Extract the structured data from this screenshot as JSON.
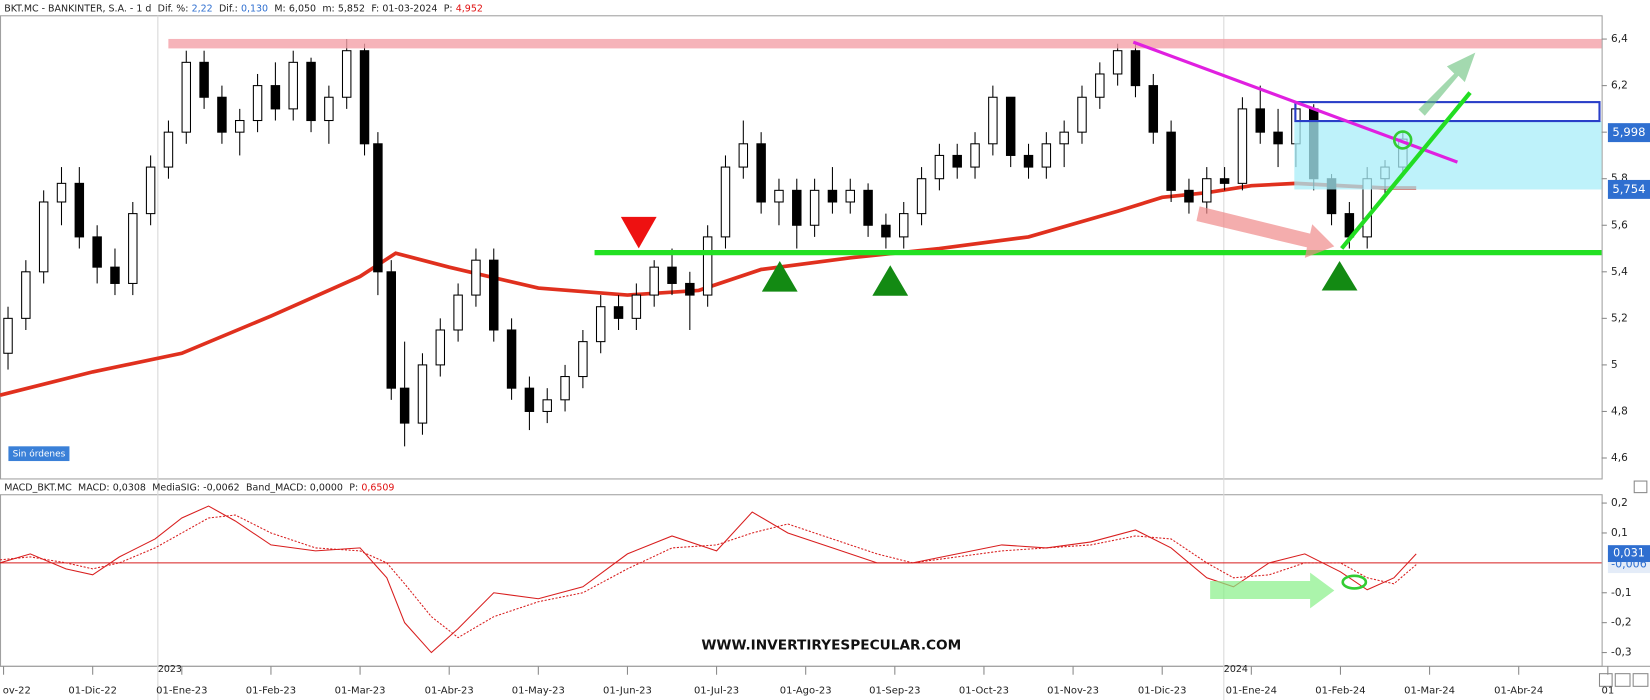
{
  "x_axis": {
    "xlim": [
      -1.04,
      16.93
    ],
    "xticks": [
      {
        "value": -1,
        "label": "ov-22"
      },
      {
        "value": 0,
        "label": "01-Dic-22"
      },
      {
        "value": 1,
        "label": "01-Ene-23"
      },
      {
        "value": 2,
        "label": "01-Feb-23"
      },
      {
        "value": 3,
        "label": "01-Mar-23"
      },
      {
        "value": 4,
        "label": "01-Abr-23"
      },
      {
        "value": 5,
        "label": "01-May-23"
      },
      {
        "value": 6,
        "label": "01-Jun-23"
      },
      {
        "value": 7,
        "label": "01-Jul-23"
      },
      {
        "value": 8,
        "label": "01-Ago-23"
      },
      {
        "value": 9,
        "label": "01-Sep-23"
      },
      {
        "value": 10,
        "label": "01-Oct-23"
      },
      {
        "value": 11,
        "label": "01-Nov-23"
      },
      {
        "value": 12,
        "label": "01-Dic-23"
      },
      {
        "value": 13,
        "label": "01-Ene-24"
      },
      {
        "value": 14,
        "label": "01-Feb-24"
      },
      {
        "value": 15,
        "label": "01-Mar-24"
      },
      {
        "value": 16,
        "label": "01-Abr-24"
      },
      {
        "value": 17,
        "label": "01"
      }
    ],
    "year_labels": [
      "2023",
      "2024"
    ]
  },
  "chart_data": [
    {
      "type": "candlestick",
      "title": "BKT.MC - BANKINTER, S.A. - 1 d",
      "header_fields": [
        {
          "label": "Dif. %:",
          "value": "2,22",
          "color": "#2f6fd0"
        },
        {
          "label": "Dif.:",
          "value": "0,130",
          "color": "#2f6fd0"
        },
        {
          "label": "M:",
          "value": "6,050",
          "color": "#222222"
        },
        {
          "label": "m:",
          "value": "5,852",
          "color": "#222222"
        },
        {
          "label": "F:",
          "value": "01-03-2024",
          "color": "#222222"
        },
        {
          "label": "P:",
          "value": "4,952",
          "color": "#e01010"
        }
      ],
      "up_color": "#ffffff",
      "down_color": "#000000",
      "x": [
        -0.95,
        -0.75,
        -0.55,
        -0.35,
        -0.15,
        0.05,
        0.25,
        0.45,
        0.65,
        0.85,
        1.05,
        1.25,
        1.45,
        1.65,
        1.85,
        2.05,
        2.25,
        2.45,
        2.65,
        2.85,
        3.05,
        3.2,
        3.35,
        3.5,
        3.7,
        3.9,
        4.1,
        4.3,
        4.5,
        4.7,
        4.9,
        5.1,
        5.3,
        5.5,
        5.7,
        5.9,
        6.1,
        6.3,
        6.5,
        6.7,
        6.9,
        7.1,
        7.3,
        7.5,
        7.7,
        7.9,
        8.1,
        8.3,
        8.5,
        8.7,
        8.9,
        9.1,
        9.3,
        9.5,
        9.7,
        9.9,
        10.1,
        10.3,
        10.5,
        10.7,
        10.9,
        11.1,
        11.3,
        11.5,
        11.7,
        11.9,
        12.1,
        12.3,
        12.5,
        12.7,
        12.9,
        13.1,
        13.3,
        13.5,
        13.7,
        13.9,
        14.1,
        14.3,
        14.5,
        14.7
      ],
      "open": [
        5.05,
        5.2,
        5.4,
        5.7,
        5.78,
        5.55,
        5.42,
        5.35,
        5.65,
        5.85,
        6.0,
        6.3,
        6.15,
        6.0,
        6.05,
        6.2,
        6.1,
        6.3,
        6.05,
        6.15,
        6.35,
        5.95,
        5.4,
        4.9,
        4.75,
        5.0,
        5.15,
        5.3,
        5.45,
        5.15,
        4.9,
        4.8,
        4.85,
        4.95,
        5.1,
        5.25,
        5.2,
        5.3,
        5.42,
        5.35,
        5.3,
        5.55,
        5.85,
        5.95,
        5.7,
        5.75,
        5.6,
        5.75,
        5.7,
        5.75,
        5.6,
        5.55,
        5.65,
        5.8,
        5.9,
        5.85,
        5.95,
        6.15,
        5.9,
        5.85,
        5.95,
        6.0,
        6.15,
        6.25,
        6.35,
        6.2,
        6.0,
        5.75,
        5.7,
        5.8,
        5.78,
        6.1,
        6.0,
        5.95,
        6.1,
        5.8,
        5.65,
        5.55,
        5.8,
        5.85
      ],
      "high": [
        5.25,
        5.45,
        5.75,
        5.85,
        5.85,
        5.6,
        5.5,
        5.7,
        5.9,
        6.05,
        6.35,
        6.35,
        6.2,
        6.1,
        6.25,
        6.3,
        6.35,
        6.32,
        6.2,
        6.4,
        6.38,
        6.0,
        5.45,
        5.1,
        5.05,
        5.2,
        5.35,
        5.5,
        5.5,
        5.2,
        4.95,
        4.9,
        5.0,
        5.15,
        5.3,
        5.3,
        5.35,
        5.45,
        5.5,
        5.4,
        5.6,
        5.9,
        6.05,
        6.0,
        5.8,
        5.8,
        5.8,
        5.85,
        5.8,
        5.78,
        5.65,
        5.7,
        5.85,
        5.95,
        5.95,
        6.0,
        6.2,
        6.15,
        5.95,
        6.0,
        6.05,
        6.2,
        6.3,
        6.38,
        6.38,
        6.25,
        6.05,
        5.8,
        5.85,
        5.85,
        6.15,
        6.2,
        6.1,
        6.12,
        6.12,
        5.82,
        5.7,
        5.85,
        5.88,
        6.0
      ],
      "low": [
        4.98,
        5.15,
        5.35,
        5.6,
        5.5,
        5.35,
        5.3,
        5.3,
        5.6,
        5.8,
        5.95,
        6.1,
        5.95,
        5.9,
        6.0,
        6.05,
        6.05,
        6.0,
        5.95,
        6.1,
        5.9,
        5.3,
        4.85,
        4.65,
        4.7,
        4.95,
        5.1,
        5.25,
        5.1,
        4.85,
        4.72,
        4.75,
        4.8,
        4.9,
        5.05,
        5.15,
        5.15,
        5.25,
        5.3,
        5.15,
        5.25,
        5.5,
        5.8,
        5.65,
        5.6,
        5.5,
        5.55,
        5.65,
        5.65,
        5.55,
        5.5,
        5.5,
        5.6,
        5.75,
        5.8,
        5.8,
        5.9,
        5.85,
        5.8,
        5.8,
        5.85,
        5.95,
        6.1,
        6.2,
        6.15,
        5.95,
        5.7,
        5.65,
        5.65,
        5.75,
        5.75,
        5.95,
        5.85,
        5.85,
        5.75,
        5.6,
        5.5,
        5.5,
        5.72,
        5.82
      ],
      "close": [
        5.2,
        5.4,
        5.7,
        5.78,
        5.55,
        5.42,
        5.35,
        5.65,
        5.85,
        6.0,
        6.3,
        6.15,
        6.0,
        6.05,
        6.2,
        6.1,
        6.3,
        6.05,
        6.15,
        6.35,
        5.95,
        5.4,
        4.9,
        4.75,
        5.0,
        5.15,
        5.3,
        5.45,
        5.15,
        4.9,
        4.8,
        4.85,
        4.95,
        5.1,
        5.25,
        5.2,
        5.3,
        5.42,
        5.35,
        5.3,
        5.55,
        5.85,
        5.95,
        5.7,
        5.75,
        5.6,
        5.75,
        5.7,
        5.75,
        5.6,
        5.55,
        5.65,
        5.8,
        5.9,
        5.85,
        5.95,
        6.15,
        5.9,
        5.85,
        5.95,
        6.0,
        6.15,
        6.25,
        6.35,
        6.2,
        6.0,
        5.75,
        5.7,
        5.8,
        5.78,
        6.1,
        6.0,
        5.95,
        6.1,
        5.8,
        5.65,
        5.55,
        5.8,
        5.85,
        5.97
      ],
      "moving_average": {
        "color": "#e0301e",
        "x": [
          -1.04,
          0,
          1,
          2,
          3,
          3.4,
          4,
          5,
          6,
          6.8,
          7.5,
          8.5,
          9.5,
          10.5,
          11.5,
          12,
          12.5,
          13,
          13.5,
          14.5,
          14.85
        ],
        "values": [
          4.87,
          4.97,
          5.05,
          5.21,
          5.38,
          5.48,
          5.42,
          5.33,
          5.3,
          5.32,
          5.41,
          5.46,
          5.5,
          5.55,
          5.66,
          5.72,
          5.74,
          5.77,
          5.78,
          5.76,
          5.76
        ]
      },
      "ylim": [
        4.51,
        6.5
      ],
      "yticks": [
        {
          "value": 4.6,
          "label": "4,6"
        },
        {
          "value": 4.8,
          "label": "4,8"
        },
        5,
        {
          "value": 5.2,
          "label": "5,2"
        },
        {
          "value": 5.4,
          "label": "5,4"
        },
        {
          "value": 5.6,
          "label": "5,6"
        },
        {
          "value": 5.8,
          "label": "5,8"
        },
        6,
        {
          "value": 6.2,
          "label": "6,2"
        },
        {
          "value": 6.4,
          "label": "6,4"
        }
      ],
      "price_badges": [
        {
          "value": 5.998,
          "label": "5,998",
          "color": "#2f6fd0"
        },
        {
          "value": 5.754,
          "label": "5,754",
          "color": "#2f6fd0"
        }
      ],
      "status": "Sin órdenes",
      "watermark": "WWW.INVERTIRYESPECULAR.COM"
    },
    {
      "type": "line",
      "title": "MACD_BKT.MC",
      "header_fields": [
        {
          "label": "MACD:",
          "value": "0,0308",
          "color": "#222222"
        },
        {
          "label": "MediaSIG:",
          "value": "-0,0062",
          "color": "#222222"
        },
        {
          "label": "Band_MACD:",
          "value": "0,0000",
          "color": "#222222"
        },
        {
          "label": "P:",
          "value": "0,6509",
          "color": "#e01010"
        }
      ],
      "x": [
        -1.04,
        -0.7,
        -0.3,
        0,
        0.3,
        0.7,
        1,
        1.3,
        1.6,
        2,
        2.5,
        3,
        3.3,
        3.5,
        3.8,
        4.1,
        4.5,
        5,
        5.5,
        6,
        6.5,
        7,
        7.4,
        7.8,
        8.3,
        8.8,
        9.2,
        9.7,
        10.2,
        10.7,
        11.2,
        11.7,
        12.1,
        12.5,
        12.8,
        13.2,
        13.6,
        14,
        14.3,
        14.6,
        14.85
      ],
      "series": [
        {
          "color": "#d81e1e",
          "dashed": false,
          "values": [
            0,
            0.03,
            -0.02,
            -0.04,
            0.02,
            0.08,
            0.15,
            0.19,
            0.14,
            0.06,
            0.04,
            0.05,
            -0.05,
            -0.2,
            -0.3,
            -0.22,
            -0.1,
            -0.12,
            -0.08,
            0.03,
            0.09,
            0.04,
            0.17,
            0.1,
            0.05,
            0,
            0,
            0.03,
            0.06,
            0.05,
            0.07,
            0.11,
            0.05,
            -0.05,
            -0.08,
            0,
            0.03,
            -0.03,
            -0.09,
            -0.05,
            0.03
          ]
        },
        {
          "color": "#d81e1e",
          "dashed": true,
          "values": [
            0.01,
            0.02,
            0,
            -0.02,
            0,
            0.05,
            0.1,
            0.15,
            0.16,
            0.1,
            0.05,
            0.04,
            0,
            -0.07,
            -0.18,
            -0.25,
            -0.18,
            -0.13,
            -0.1,
            -0.02,
            0.05,
            0.06,
            0.1,
            0.13,
            0.08,
            0.03,
            0,
            0.02,
            0.04,
            0.05,
            0.06,
            0.09,
            0.08,
            0,
            -0.05,
            -0.04,
            0,
            0,
            -0.05,
            -0.07,
            -0.006
          ]
        }
      ],
      "zero_line": {
        "value": 0,
        "color": "#d81e1e"
      },
      "ylim": [
        -0.346,
        0.256
      ],
      "yticks": [
        {
          "value": 0.2,
          "label": "0,2"
        },
        {
          "value": 0.1,
          "label": "0,1"
        },
        {
          "value": -0.1,
          "label": "-0,1"
        },
        {
          "value": -0.2,
          "label": "-0,2"
        },
        {
          "value": -0.3,
          "label": "-0,3"
        }
      ],
      "badges": [
        {
          "value": -0.006,
          "label": "-0,006",
          "filled": false
        },
        {
          "value": 0.031,
          "label": "0,031",
          "filled": true
        }
      ]
    }
  ]
}
